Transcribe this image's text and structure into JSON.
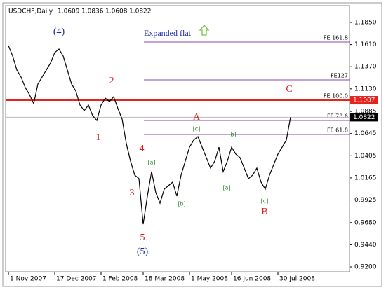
{
  "chart_data": {
    "type": "line",
    "title": "USDCHF,Daily",
    "quote": [
      1.0609,
      1.0836,
      1.0608,
      1.0822
    ],
    "note": "Expanded flat",
    "categories": [
      "1 Nov 2007",
      null,
      null,
      null,
      null,
      null,
      null,
      null,
      null,
      null,
      null,
      "17 Dec 2007",
      null,
      null,
      null,
      null,
      null,
      null,
      null,
      null,
      null,
      null,
      "1 Feb 2008",
      null,
      null,
      null,
      null,
      null,
      null,
      null,
      null,
      null,
      "18 Mar 2008",
      null,
      null,
      null,
      null,
      null,
      null,
      null,
      null,
      null,
      null,
      "1 May 2008",
      null,
      null,
      null,
      null,
      null,
      null,
      null,
      null,
      null,
      "16 Jun 2008",
      null,
      null,
      null,
      null,
      null,
      null,
      null,
      null,
      null,
      null,
      "30 Jul 2008",
      null,
      null,
      null
    ],
    "series": [
      {
        "name": "USDCHF",
        "color": "#000000",
        "values": [
          1.1599,
          1.1486,
          1.1334,
          1.1258,
          1.1144,
          1.1068,
          1.0969,
          1.1182,
          1.1258,
          1.1334,
          1.141,
          1.1523,
          1.1561,
          1.1486,
          1.1334,
          1.1182,
          1.1106,
          1.0954,
          1.0893,
          1.0954,
          1.084,
          1.0787,
          1.0954,
          1.103,
          1.0992,
          1.1045,
          1.0916,
          1.0802,
          1.0536,
          1.0347,
          1.0195,
          1.0157,
          0.9663,
          0.9967,
          1.0233,
          1.0005,
          0.9891,
          1.0043,
          1.0081,
          1.0119,
          0.9967,
          1.0195,
          1.0347,
          1.0498,
          1.0574,
          1.0612,
          1.0498,
          1.0385,
          1.0271,
          1.0347,
          1.0498,
          1.0233,
          1.0347,
          1.0498,
          1.0423,
          1.0385,
          1.0271,
          1.0157,
          1.0195,
          1.0271,
          1.0119,
          1.0043,
          1.0195,
          1.0309,
          1.0423,
          1.0498,
          1.0574,
          1.0822
        ]
      }
    ],
    "ylim": [
      0.9147,
      1.2017
    ],
    "yticks": [
      {
        "value": 1.185,
        "label": "1.1850"
      },
      {
        "value": 1.161,
        "label": "1.1610"
      },
      {
        "value": 1.137,
        "label": "1.1370"
      },
      {
        "value": 1.113,
        "label": "1.1130"
      },
      1.0885,
      1.0645,
      1.0405,
      1.0165,
      0.9925,
      {
        "value": 0.968,
        "label": "0.9680"
      },
      {
        "value": 0.944,
        "label": "0.9440"
      },
      {
        "value": 0.92,
        "label": "0.9200"
      }
    ],
    "levels": [
      {
        "name": "FE 161.8",
        "value": 1.1637,
        "color": "#8e44ad"
      },
      {
        "name": "FE127",
        "value": 1.1227,
        "color": "#8e44ad"
      },
      {
        "name": "FE 100.0",
        "value": 1.1007,
        "color": "#e8231f"
      },
      {
        "name": "FE 78.6",
        "value": 1.0787,
        "color": "#8e44ad"
      },
      {
        "name": "FE 61.8",
        "value": 1.0635,
        "color": "#8e44ad"
      }
    ],
    "annotations": [
      {
        "text": "(4)",
        "color": "#1a2aa8"
      },
      {
        "text": "2",
        "color": "#d61f1f"
      },
      {
        "text": "1",
        "color": "#d61f1f"
      },
      {
        "text": "4",
        "color": "#d61f1f"
      },
      {
        "text": "3",
        "color": "#d61f1f"
      },
      {
        "text": "5",
        "color": "#d61f1f"
      },
      {
        "text": "(5)",
        "color": "#1a2aa8"
      },
      {
        "text": "A",
        "color": "#d61f1f"
      },
      {
        "text": "B",
        "color": "#d61f1f"
      },
      {
        "text": "C",
        "color": "#d61f1f"
      },
      {
        "text": "[a]",
        "color": "#2e8b2e"
      },
      {
        "text": "[b]",
        "color": "#2e8b2e"
      },
      {
        "text": "[c]",
        "color": "#2e8b2e"
      },
      {
        "text": "[b]",
        "color": "#2e8b2e"
      },
      {
        "text": "[a]",
        "color": "#2e8b2e"
      },
      {
        "text": "[c]",
        "color": "#2e8b2e"
      }
    ]
  }
}
